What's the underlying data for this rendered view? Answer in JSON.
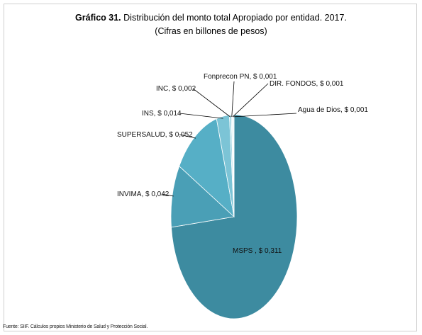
{
  "title": {
    "bold": "Gráfico 31.",
    "text": " Distribución del monto total Apropiado por entidad.  2017.",
    "subtitle": "(Cifras en billones de pesos)"
  },
  "source": "Fuente: SIIF. Cálculos propios Ministerio de Salud y Protección Social.",
  "chart_data": {
    "type": "pie",
    "currency_prefix": "$",
    "slices": [
      {
        "name": "MSPS",
        "value": 0.311,
        "label": "MSPS  , $ 0,311",
        "color": "#3d8ba0"
      },
      {
        "name": "INVIMA",
        "value": 0.042,
        "label": "INVIMA, $ 0,042",
        "color": "#4a9fb6"
      },
      {
        "name": "SUPERSALUD",
        "value": 0.052,
        "label": "SUPERSALUD, $ 0,052",
        "color": "#56afc6"
      },
      {
        "name": "INS",
        "value": 0.014,
        "label": "INS, $ 0,014",
        "color": "#7cc4d6"
      },
      {
        "name": "INC",
        "value": 0.002,
        "label": "INC, $ 0,002",
        "color": "#9fd4e2"
      },
      {
        "name": "Fonprecon PN",
        "value": 0.001,
        "label": "Fonprecon PN, $ 0,001",
        "color": "#b8e0ea"
      },
      {
        "name": "DIR. FONDOS",
        "value": 0.001,
        "label": "DIR. FONDOS, $ 0,001",
        "color": "#cde9f0"
      },
      {
        "name": "Agua de Dios",
        "value": 0.001,
        "label": "Agua de Dios, $ 0,001",
        "color": "#e0f1f6"
      }
    ]
  }
}
